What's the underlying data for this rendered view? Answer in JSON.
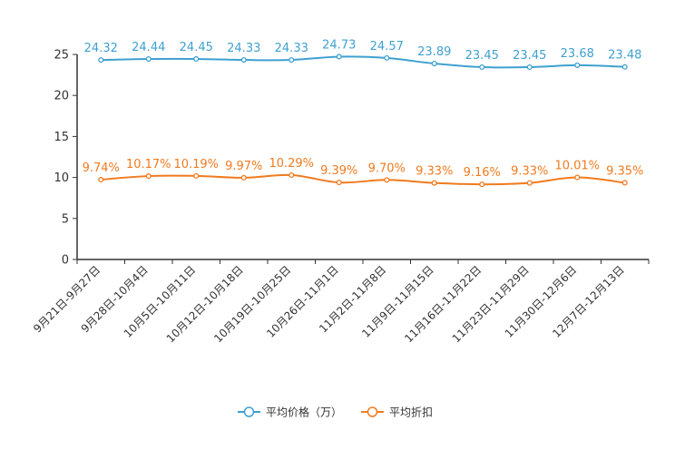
{
  "chart_data": {
    "type": "line",
    "categories": [
      "9月21日-9月27日",
      "9月28日-10月4日",
      "10月5日-10月11日",
      "10月12日-10月18日",
      "10月19日-10月25日",
      "10月26日-11月1日",
      "11月2日-11月8日",
      "11月9日-11月15日",
      "11月16日-11月22日",
      "11月23日-11月29日",
      "11月30日-12月6日",
      "12月7日-12月13日"
    ],
    "ylim": [
      0,
      25
    ],
    "yticks": [
      0,
      5,
      10,
      15,
      20,
      25
    ],
    "series": [
      {
        "name": "平均价格（万）",
        "color": "#3fa0d0",
        "values": [
          24.32,
          24.44,
          24.45,
          24.33,
          24.33,
          24.73,
          24.57,
          23.89,
          23.45,
          23.45,
          23.68,
          23.48
        ],
        "labels": [
          "24.32",
          "24.44",
          "24.45",
          "24.33",
          "24.33",
          "24.73",
          "24.57",
          "23.89",
          "23.45",
          "23.45",
          "23.68",
          "23.48"
        ]
      },
      {
        "name": "平均折扣",
        "color": "#f07b1f",
        "values": [
          9.74,
          10.17,
          10.19,
          9.97,
          10.29,
          9.39,
          9.7,
          9.33,
          9.16,
          9.33,
          10.01,
          9.35
        ],
        "labels": [
          "9.74%",
          "10.17%",
          "10.19%",
          "9.97%",
          "10.29%",
          "9.39%",
          "9.70%",
          "9.33%",
          "9.16%",
          "9.33%",
          "10.01%",
          "9.35%"
        ]
      }
    ],
    "legend_position": "bottom-center"
  }
}
